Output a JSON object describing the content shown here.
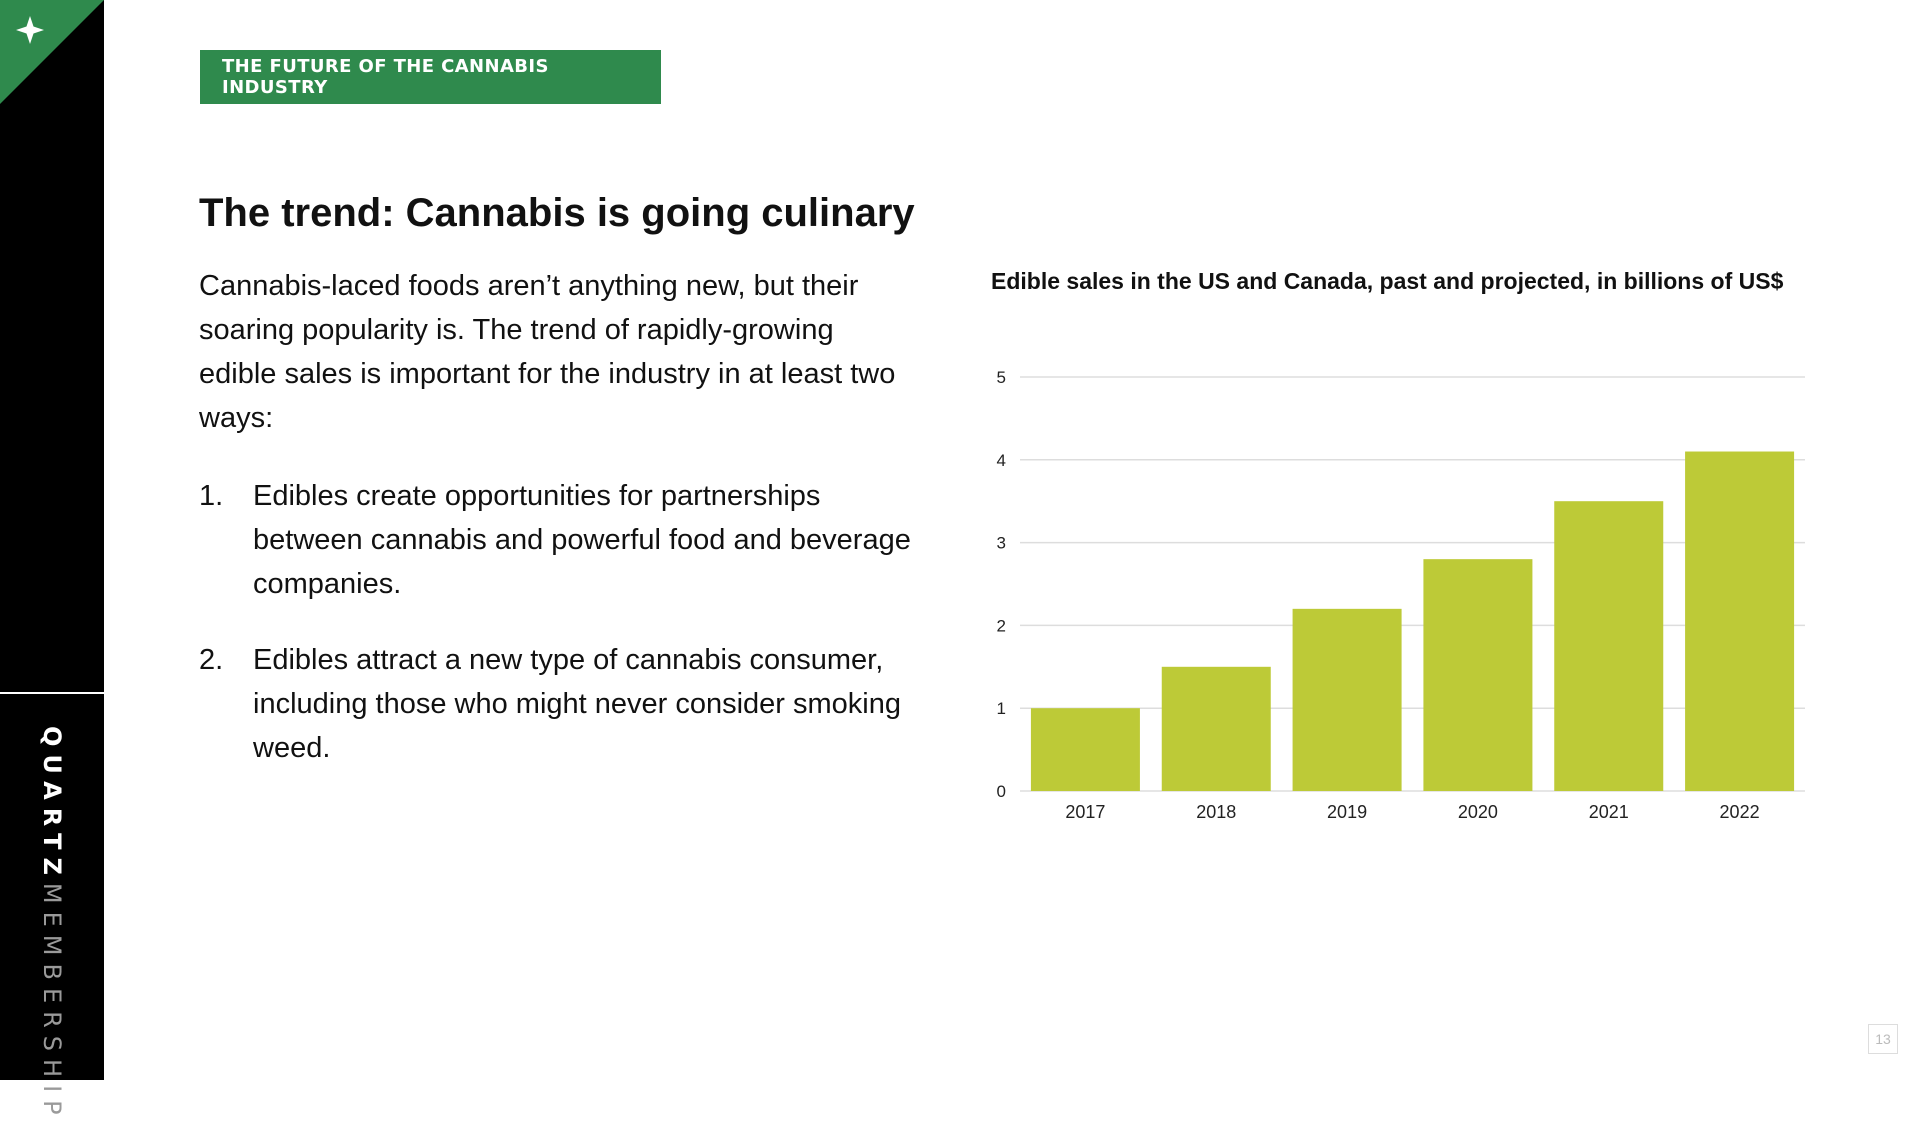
{
  "sidebar": {
    "brand_bold": "QUARTZ",
    "brand_light": "MEMBERSHIP",
    "corner_icon": "sparkle-icon",
    "accent_color": "#2f8a4d"
  },
  "header": {
    "section_tag": "THE FUTURE OF THE CANNABIS INDUSTRY",
    "title": "The trend: Cannabis is going culinary"
  },
  "body": {
    "intro": "Cannabis-laced foods aren’t anything new, but their soaring popularity is. The trend of rapidly-growing edible sales is important for the industry in at least two ways:",
    "points": [
      {
        "num": "1.",
        "text": "Edibles create opportunities for partnerships between cannabis and powerful food and beverage companies."
      },
      {
        "num": "2.",
        "text": "Edibles attract a new type of cannabis consumer, including those who might never consider smoking weed."
      }
    ]
  },
  "chart_data": {
    "type": "bar",
    "title": "Edible sales in the US and Canada, past and projected, in billions of US$",
    "categories": [
      "2017",
      "2018",
      "2019",
      "2020",
      "2021",
      "2022"
    ],
    "values": [
      1.0,
      1.5,
      2.2,
      2.8,
      3.5,
      4.1
    ],
    "ylim": [
      0,
      5
    ],
    "yticks": [
      "0",
      "1",
      "2",
      "3",
      "4",
      "5"
    ],
    "xlabel": "",
    "ylabel": "",
    "grid": true,
    "bar_color": "#bdca37",
    "grid_color": "#dddddd"
  },
  "footer": {
    "page_number": "13"
  }
}
